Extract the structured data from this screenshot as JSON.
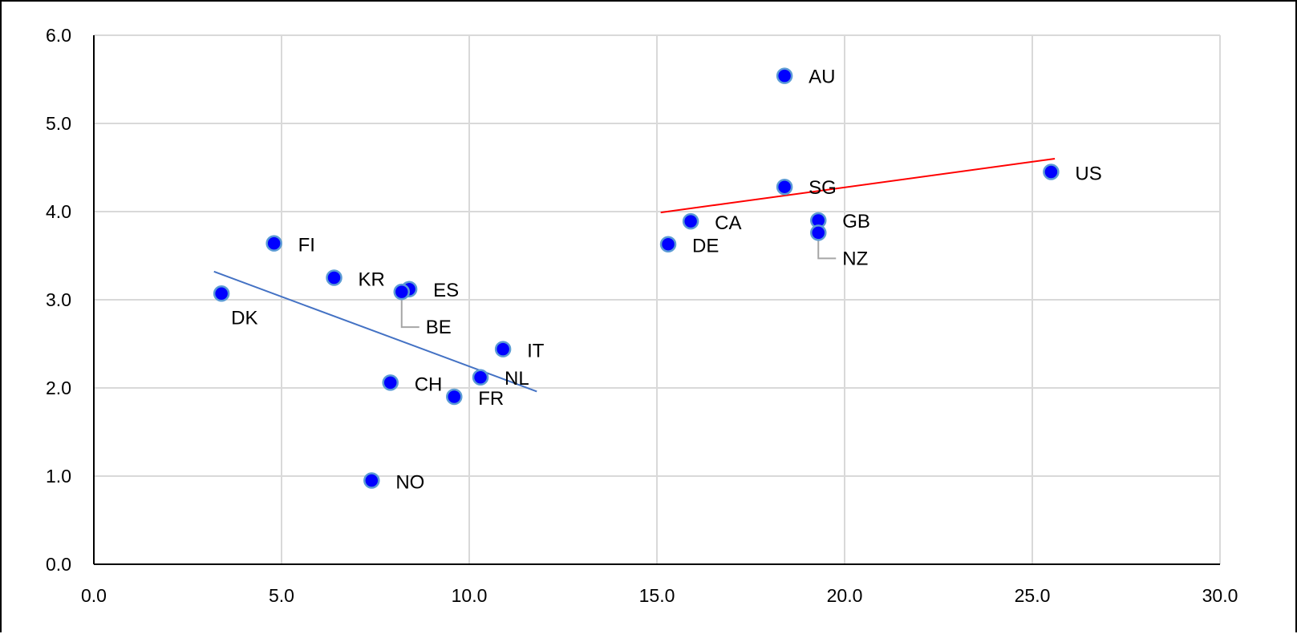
{
  "chart_data": {
    "type": "scatter",
    "title": "",
    "xlabel": "",
    "ylabel": "",
    "xlim": [
      0,
      30
    ],
    "ylim": [
      0,
      6
    ],
    "x_ticks": [
      0,
      5,
      10,
      15,
      20,
      25,
      30
    ],
    "y_ticks": [
      0,
      1,
      2,
      3,
      4,
      5,
      6
    ],
    "x_tick_labels": [
      "0.0",
      "5.0",
      "10.0",
      "15.0",
      "20.0",
      "25.0",
      "30.0"
    ],
    "y_tick_labels": [
      "0.0",
      "1.0",
      "2.0",
      "3.0",
      "4.0",
      "5.0",
      "6.0"
    ],
    "grid": true,
    "legend": "none",
    "points": [
      {
        "label": "AU",
        "x": 18.4,
        "y": 5.54
      },
      {
        "label": "US",
        "x": 25.5,
        "y": 4.45
      },
      {
        "label": "SG",
        "x": 18.4,
        "y": 4.28
      },
      {
        "label": "CA",
        "x": 15.9,
        "y": 3.89
      },
      {
        "label": "GB",
        "x": 19.3,
        "y": 3.9
      },
      {
        "label": "NZ",
        "x": 19.3,
        "y": 3.76
      },
      {
        "label": "DE",
        "x": 15.3,
        "y": 3.63
      },
      {
        "label": "FI",
        "x": 4.8,
        "y": 3.64
      },
      {
        "label": "KR",
        "x": 6.4,
        "y": 3.25
      },
      {
        "label": "ES",
        "x": 8.4,
        "y": 3.12
      },
      {
        "label": "BE",
        "x": 8.2,
        "y": 3.09
      },
      {
        "label": "DK",
        "x": 3.4,
        "y": 3.07
      },
      {
        "label": "IT",
        "x": 10.9,
        "y": 2.44
      },
      {
        "label": "NL",
        "x": 10.3,
        "y": 2.12
      },
      {
        "label": "CH",
        "x": 7.9,
        "y": 2.06
      },
      {
        "label": "FR",
        "x": 9.6,
        "y": 1.9
      },
      {
        "label": "NO",
        "x": 7.4,
        "y": 0.95
      }
    ],
    "trendlines": [
      {
        "color": "#4472C4",
        "x": [
          3.2,
          11.8
        ],
        "y": [
          3.32,
          1.96
        ]
      },
      {
        "color": "#FF0000",
        "x": [
          15.1,
          25.6
        ],
        "y": [
          3.99,
          4.6
        ]
      }
    ],
    "colors": {
      "marker_fill": "#0000FF",
      "marker_edge": "#5B9BD5",
      "grid": "#D9D9D9",
      "axis": "#000000",
      "leader": "#A6A6A6"
    }
  }
}
